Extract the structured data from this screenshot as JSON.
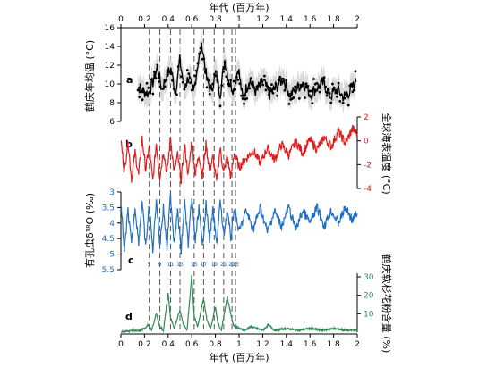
{
  "figure": {
    "top_axis_label": "年代 (百万年)",
    "bottom_axis_label": "年代 (百万年)",
    "x_ticks": [
      "0",
      "0.2",
      "0.4",
      "0.6",
      "0.8",
      "1",
      "1.2",
      "1.4",
      "1.6",
      "1.8",
      "2"
    ],
    "marker_ticks": [
      "5",
      "9",
      "11",
      "13",
      "15",
      "17",
      "19",
      "21",
      "23",
      "25"
    ]
  },
  "colors": {
    "panel_a": "#000000",
    "panel_a_band": "#d9d9d9",
    "panel_b": "#e31a1c",
    "panel_c": "#1f6fc5",
    "panel_d": "#2e8b57"
  },
  "chart_data": [
    {
      "panel": "a",
      "type": "line",
      "ylabel": "鹤庆年均温 (°C)",
      "ylim": [
        6,
        16
      ],
      "yticks": [
        "6",
        "8",
        "10",
        "12",
        "14",
        "16"
      ],
      "x": [
        0.02,
        0.06,
        0.1,
        0.14,
        0.18,
        0.22,
        0.26,
        0.3,
        0.34,
        0.38,
        0.42,
        0.46,
        0.5,
        0.54,
        0.58,
        0.62,
        0.66,
        0.7,
        0.74,
        0.78,
        0.82,
        0.86,
        0.9,
        0.94,
        0.98,
        1.04,
        1.1,
        1.16,
        1.22,
        1.28,
        1.34,
        1.4,
        1.46,
        1.52,
        1.58,
        1.64,
        1.7,
        1.76,
        1.82,
        1.88,
        1.94,
        1.99
      ],
      "y": [
        9.8,
        9.6,
        9.2,
        9.0,
        10.2,
        11.8,
        9.4,
        10.9,
        11.6,
        9.2,
        12.5,
        9.6,
        10.8,
        8.9,
        12.2,
        14.1,
        10.4,
        9.3,
        11.2,
        9.0,
        12.6,
        10.2,
        9.4,
        11.8,
        8.4,
        10.5,
        9.1,
        10.3,
        8.9,
        9.7,
        10.6,
        8.8,
        9.5,
        10.2,
        8.9,
        9.6,
        10.1,
        8.7,
        9.4,
        8.6,
        9.3,
        10.2
      ]
    },
    {
      "panel": "b",
      "type": "line",
      "ylabel": "全球海表温度 (°C)",
      "ylim": [
        -4,
        2
      ],
      "yticks": [
        "-4",
        "-2",
        "0",
        "2"
      ],
      "x": [
        0.0,
        0.03,
        0.06,
        0.09,
        0.12,
        0.15,
        0.18,
        0.21,
        0.24,
        0.27,
        0.3,
        0.33,
        0.36,
        0.39,
        0.42,
        0.45,
        0.48,
        0.51,
        0.54,
        0.57,
        0.6,
        0.63,
        0.66,
        0.69,
        0.72,
        0.75,
        0.78,
        0.81,
        0.84,
        0.87,
        0.9,
        0.93,
        0.96,
        1.0,
        1.06,
        1.12,
        1.18,
        1.24,
        1.3,
        1.36,
        1.42,
        1.48,
        1.54,
        1.6,
        1.66,
        1.72,
        1.78,
        1.84,
        1.9,
        1.96,
        2.0
      ],
      "y": [
        0.1,
        -2.6,
        0.0,
        -3.2,
        -1.0,
        -2.9,
        0.2,
        -2.4,
        -0.5,
        -3.4,
        -0.2,
        -3.1,
        -0.8,
        -2.8,
        0.3,
        -2.6,
        -1.2,
        -3.3,
        -0.4,
        -2.9,
        0.1,
        -2.8,
        -1.1,
        -3.0,
        -0.3,
        -2.5,
        -1.4,
        -3.5,
        -0.6,
        -2.7,
        -1.3,
        -3.1,
        -1.0,
        -2.2,
        -1.5,
        -0.8,
        -1.9,
        -0.6,
        -1.6,
        -0.3,
        -1.2,
        -0.1,
        -1.0,
        0.1,
        -0.7,
        0.3,
        -0.5,
        0.8,
        -0.2,
        1.0,
        0.6
      ]
    },
    {
      "panel": "c",
      "type": "line",
      "ylabel": "有孔虫δ¹⁸O (‰)",
      "ylim": [
        5.5,
        3
      ],
      "yticks": [
        "3",
        "3.5",
        "4",
        "4.5",
        "5",
        "5.5"
      ],
      "x": [
        0.0,
        0.03,
        0.06,
        0.09,
        0.12,
        0.15,
        0.18,
        0.21,
        0.24,
        0.27,
        0.3,
        0.33,
        0.36,
        0.39,
        0.42,
        0.45,
        0.48,
        0.51,
        0.54,
        0.57,
        0.6,
        0.63,
        0.66,
        0.69,
        0.72,
        0.75,
        0.78,
        0.81,
        0.84,
        0.87,
        0.9,
        0.93,
        0.96,
        1.0,
        1.06,
        1.12,
        1.18,
        1.24,
        1.3,
        1.36,
        1.42,
        1.48,
        1.54,
        1.6,
        1.66,
        1.72,
        1.78,
        1.84,
        1.9,
        1.96,
        2.0
      ],
      "y": [
        3.4,
        4.9,
        3.6,
        4.7,
        3.5,
        4.6,
        3.3,
        4.8,
        3.4,
        4.9,
        3.2,
        4.7,
        3.5,
        4.8,
        3.1,
        4.6,
        3.6,
        4.9,
        3.3,
        4.7,
        3.2,
        4.6,
        3.5,
        4.8,
        3.4,
        4.5,
        3.6,
        4.7,
        3.3,
        4.4,
        3.6,
        4.5,
        3.5,
        4.3,
        3.6,
        4.2,
        3.5,
        4.3,
        3.6,
        4.1,
        3.5,
        4.2,
        3.6,
        4.0,
        3.5,
        4.1,
        3.6,
        4.0,
        3.5,
        3.9,
        3.7
      ]
    },
    {
      "panel": "d",
      "type": "line",
      "ylabel": "鹤庆软杉花粉含量 (%)",
      "ylim": [
        0,
        30
      ],
      "yticks": [
        "10",
        "20",
        "30"
      ],
      "x": [
        0.0,
        0.05,
        0.1,
        0.15,
        0.2,
        0.23,
        0.26,
        0.3,
        0.33,
        0.36,
        0.4,
        0.42,
        0.45,
        0.5,
        0.53,
        0.56,
        0.6,
        0.62,
        0.65,
        0.7,
        0.73,
        0.76,
        0.8,
        0.82,
        0.85,
        0.9,
        0.95,
        1.0,
        1.05,
        1.1,
        1.2,
        1.25,
        1.3,
        1.4,
        1.5,
        1.6,
        1.7,
        1.8,
        1.9,
        2.0
      ],
      "y": [
        0,
        0.5,
        1,
        0.5,
        2,
        4,
        1,
        10,
        3,
        1,
        21,
        8,
        2,
        12,
        4,
        1,
        31,
        9,
        3,
        18,
        6,
        2,
        14,
        5,
        1,
        19,
        4,
        2,
        1,
        3,
        1,
        4,
        1,
        2,
        1,
        2,
        1,
        2,
        1,
        1
      ]
    }
  ]
}
